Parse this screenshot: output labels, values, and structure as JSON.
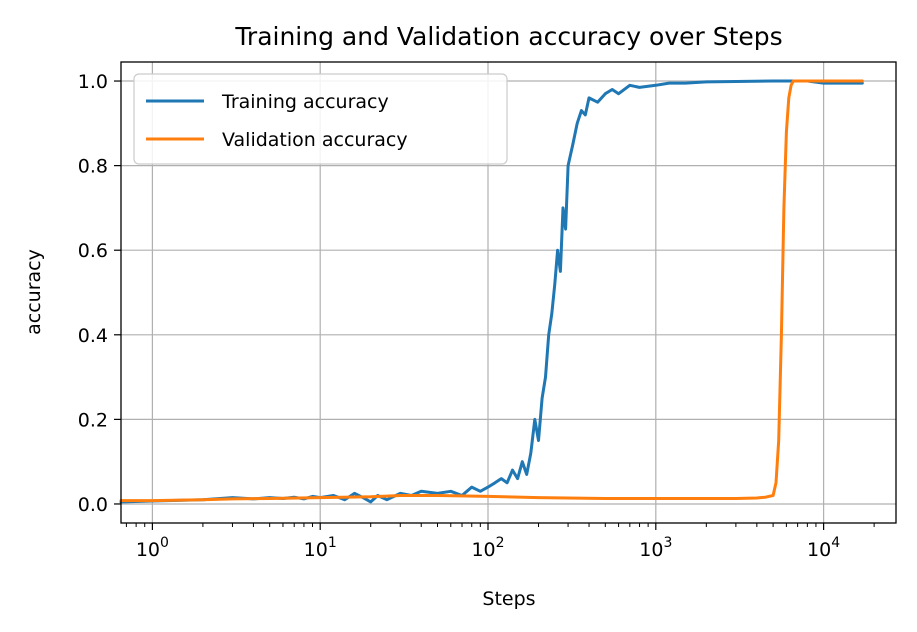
{
  "chart_data": {
    "type": "line",
    "title": "Training and Validation accuracy over Steps",
    "xlabel": "Steps",
    "ylabel": "accuracy",
    "xscale": "log",
    "xlim": [
      0.65,
      27000
    ],
    "ylim": [
      -0.045,
      1.045
    ],
    "grid": true,
    "legend": "upper-left",
    "x_ticks": [
      {
        "base": "10",
        "exp": "0",
        "value": 1
      },
      {
        "base": "10",
        "exp": "1",
        "value": 10
      },
      {
        "base": "10",
        "exp": "2",
        "value": 100
      },
      {
        "base": "10",
        "exp": "3",
        "value": 1000
      },
      {
        "base": "10",
        "exp": "4",
        "value": 10000
      }
    ],
    "y_ticks": [
      {
        "label": "0.0",
        "value": 0.0
      },
      {
        "label": "0.2",
        "value": 0.2
      },
      {
        "label": "0.4",
        "value": 0.4
      },
      {
        "label": "0.6",
        "value": 0.6
      },
      {
        "label": "0.8",
        "value": 0.8
      },
      {
        "label": "1.0",
        "value": 1.0
      }
    ],
    "series": [
      {
        "name": "Training accuracy",
        "color": "#1f77b4",
        "x": [
          0.65,
          1,
          2,
          3,
          4,
          5,
          6,
          7,
          8,
          9,
          10,
          12,
          14,
          16,
          18,
          20,
          22,
          25,
          30,
          35,
          40,
          50,
          60,
          70,
          80,
          90,
          100,
          110,
          120,
          130,
          140,
          150,
          160,
          170,
          180,
          190,
          200,
          210,
          220,
          230,
          240,
          250,
          260,
          270,
          280,
          290,
          300,
          320,
          340,
          360,
          380,
          400,
          450,
          500,
          550,
          600,
          700,
          800,
          1000,
          1200,
          1500,
          2000,
          3000,
          5000,
          8000,
          10000,
          13000,
          17000
        ],
        "y": [
          0.005,
          0.007,
          0.01,
          0.015,
          0.012,
          0.015,
          0.013,
          0.016,
          0.012,
          0.018,
          0.015,
          0.02,
          0.01,
          0.025,
          0.015,
          0.005,
          0.02,
          0.01,
          0.025,
          0.02,
          0.03,
          0.025,
          0.03,
          0.02,
          0.04,
          0.03,
          0.04,
          0.05,
          0.06,
          0.05,
          0.08,
          0.06,
          0.1,
          0.07,
          0.12,
          0.2,
          0.15,
          0.25,
          0.3,
          0.4,
          0.45,
          0.52,
          0.6,
          0.55,
          0.7,
          0.65,
          0.8,
          0.85,
          0.9,
          0.93,
          0.92,
          0.96,
          0.95,
          0.97,
          0.98,
          0.97,
          0.99,
          0.985,
          0.99,
          0.995,
          0.995,
          0.998,
          0.999,
          1.0,
          1.0,
          0.995,
          0.995,
          0.995
        ]
      },
      {
        "name": "Validation accuracy",
        "color": "#ff7f0e",
        "x": [
          0.65,
          1,
          2,
          3,
          5,
          10,
          20,
          30,
          50,
          100,
          200,
          500,
          1000,
          2000,
          3000,
          4000,
          4500,
          5000,
          5200,
          5400,
          5600,
          5800,
          6000,
          6200,
          6400,
          6600,
          7000,
          8000,
          10000,
          13000,
          17000
        ],
        "y": [
          0.008,
          0.008,
          0.01,
          0.012,
          0.013,
          0.015,
          0.017,
          0.02,
          0.02,
          0.018,
          0.015,
          0.013,
          0.013,
          0.013,
          0.013,
          0.014,
          0.016,
          0.02,
          0.05,
          0.15,
          0.4,
          0.7,
          0.88,
          0.96,
          0.99,
          1.0,
          1.0,
          1.0,
          1.0,
          1.0,
          1.0
        ]
      }
    ]
  }
}
